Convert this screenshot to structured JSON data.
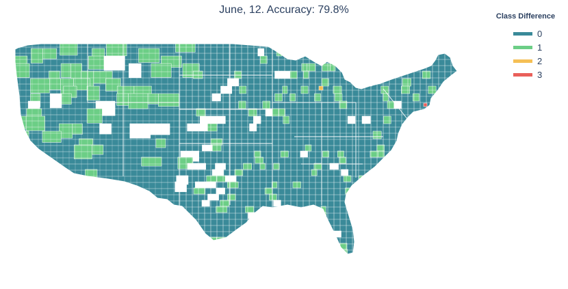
{
  "title": "June, 12. Accuracy: 79.8%",
  "colors": {
    "background": "#ffffff",
    "county_border": "#ffffff",
    "class_0": "#3a8a99",
    "class_1": "#6cce86",
    "class_2": "#f5bf55",
    "class_3": "#e9605a",
    "missing": "#ffffff"
  },
  "legend": {
    "title": "Class Difference",
    "items": [
      {
        "label": "0",
        "class": 0
      },
      {
        "label": "1",
        "class": 1
      },
      {
        "label": "2",
        "class": 2
      },
      {
        "label": "3",
        "class": 3
      }
    ]
  },
  "map": {
    "region": "contiguous United States",
    "unit": "county",
    "dominant_class": 0,
    "notable_regions": [
      {
        "area": "Washington / Oregon / Idaho",
        "class": 1,
        "share": "mixed"
      },
      {
        "area": "Montana / Wyoming / Colorado",
        "class": 1,
        "share": "scattered"
      },
      {
        "area": "Kansas / Oklahoma / Texas panhandle",
        "class": null,
        "share": "many missing counties"
      },
      {
        "area": "Michigan",
        "class": 2,
        "share": "single county"
      },
      {
        "area": "Massachusetts",
        "class": 3,
        "share": "single county"
      },
      {
        "area": "Southeast",
        "class": 1,
        "share": "scattered"
      }
    ]
  }
}
